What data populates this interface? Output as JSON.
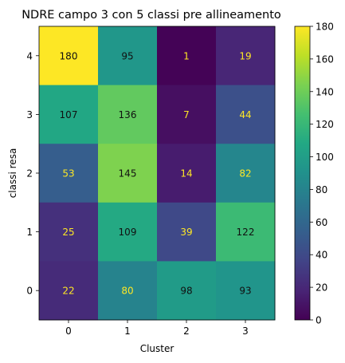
{
  "chart_data": {
    "type": "heatmap",
    "title": "NDRE campo 3 con 5 classi pre allineamento",
    "xlabel": "Cluster",
    "ylabel": "classi resa",
    "x_categories": [
      "0",
      "1",
      "2",
      "3"
    ],
    "y_categories_top_to_bottom": [
      "4",
      "3",
      "2",
      "1",
      "0"
    ],
    "values_top_to_bottom": [
      [
        180,
        95,
        1,
        19
      ],
      [
        107,
        136,
        7,
        44
      ],
      [
        53,
        145,
        14,
        82
      ],
      [
        25,
        109,
        39,
        122
      ],
      [
        22,
        80,
        98,
        93
      ]
    ],
    "colormap": "viridis",
    "vmin": 0,
    "vmax": 180,
    "colorbar_ticks": [
      "0",
      "20",
      "40",
      "60",
      "80",
      "100",
      "120",
      "140",
      "160",
      "180"
    ],
    "text_color_dark_cells": "#fde725",
    "text_color_light_cells": "#111111"
  }
}
